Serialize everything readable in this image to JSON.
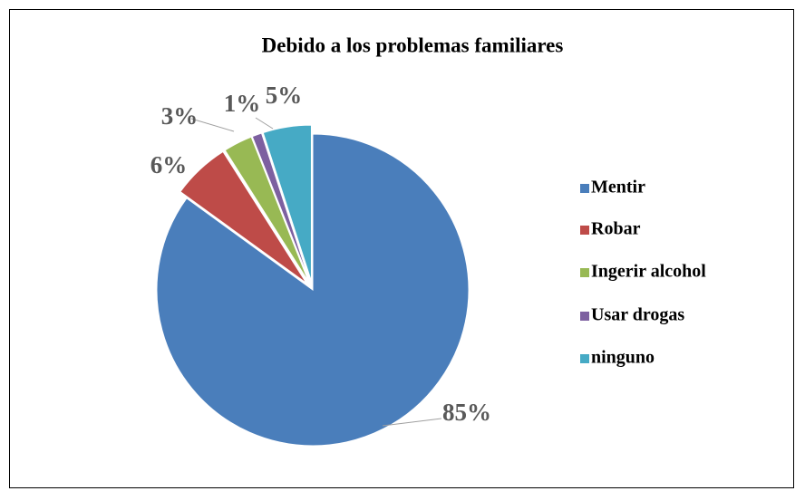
{
  "chart_data": {
    "type": "pie",
    "title": "Debido a los problemas familiares",
    "categories": [
      "Mentir",
      "Robar",
      "Ingerir alcohol",
      "Usar drogas",
      "ninguno"
    ],
    "values": [
      85,
      6,
      3,
      1,
      5
    ],
    "value_labels": [
      "85%",
      "6%",
      "3%",
      "1%",
      "5%"
    ],
    "colors": [
      "#4a7ebb",
      "#be4b48",
      "#98b954",
      "#7d60a0",
      "#46aac5"
    ],
    "legend": "right"
  }
}
